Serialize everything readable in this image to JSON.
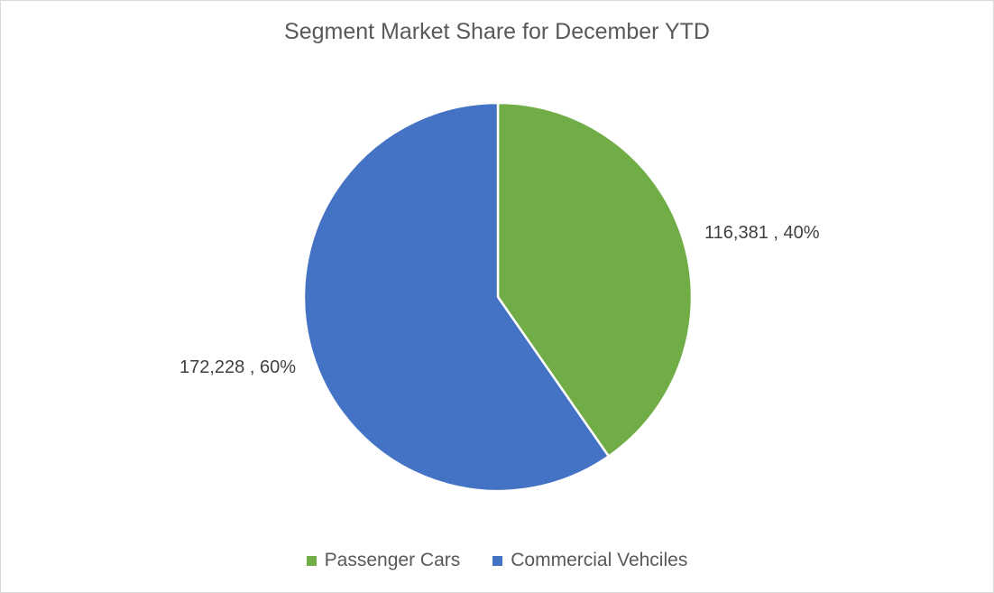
{
  "chart_data": {
    "type": "pie",
    "title": "Segment Market Share for December YTD",
    "slices": [
      {
        "label": "Passenger Cars",
        "value": 116381,
        "percent": 40,
        "color": "#70ad47",
        "data_label": "116,381 , 40%"
      },
      {
        "label": "Commercial Vehciles",
        "value": 172228,
        "percent": 60,
        "color": "#4472c4",
        "data_label": "172,228 , 60%"
      }
    ],
    "legend_position": "bottom",
    "start_angle": "top, clockwise"
  }
}
